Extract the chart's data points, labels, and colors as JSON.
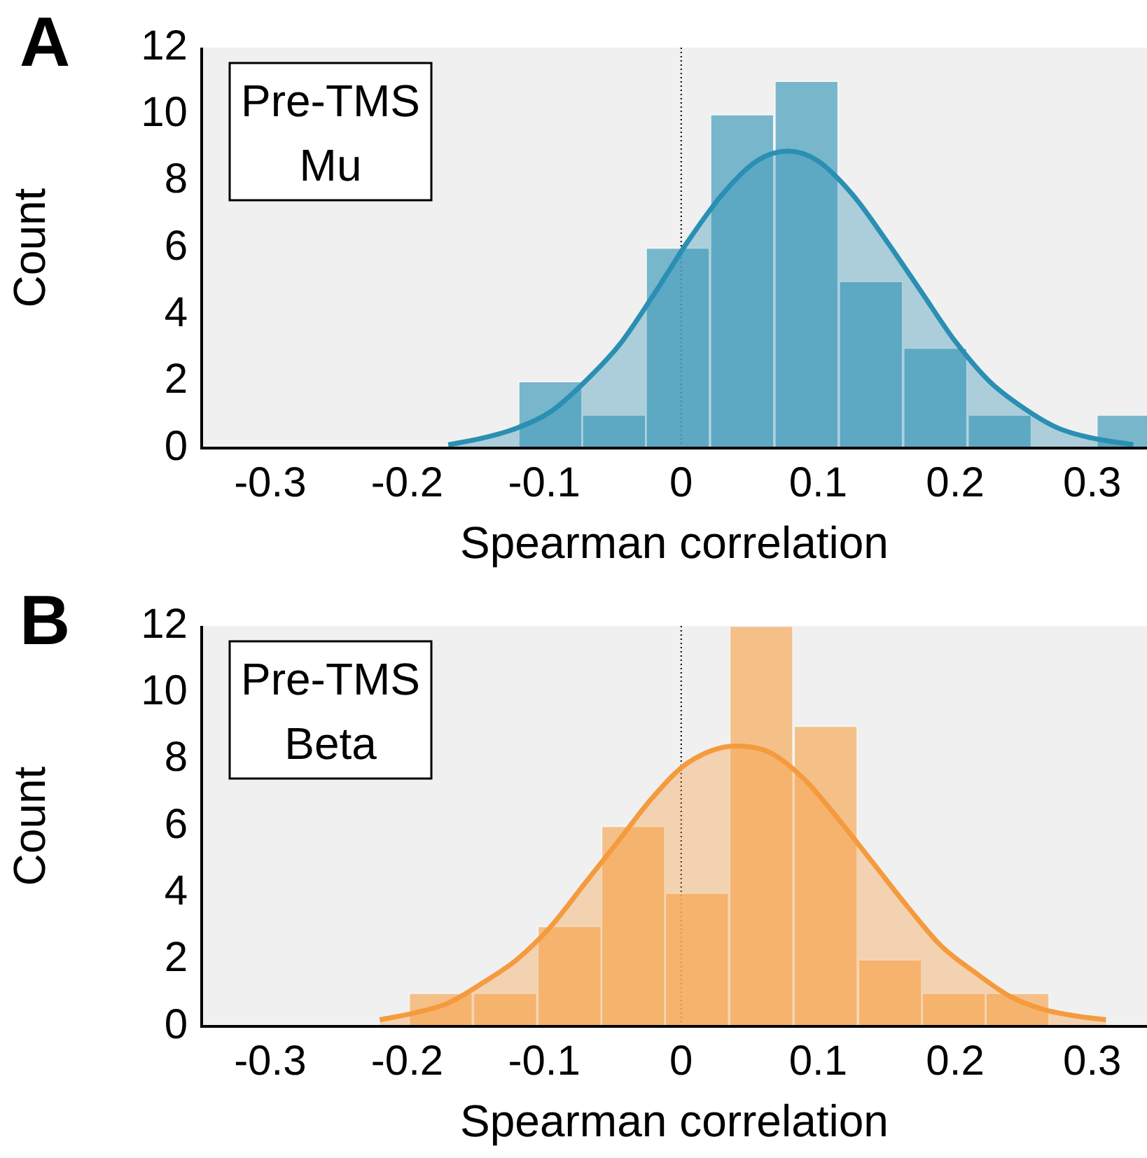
{
  "chart_data": [
    {
      "type": "histogram",
      "xlabel": "Spearman correlation",
      "ylabel": "Count",
      "annotations": [
        "A",
        "Pre-TMS\nMu"
      ],
      "xlim": [
        -0.35,
        0.34
      ],
      "xticks": [
        -0.3,
        -0.2,
        -0.1,
        0,
        0.1,
        0.2,
        0.3
      ],
      "ylim": [
        0,
        12
      ],
      "yticks": [
        0,
        2,
        4,
        6,
        8,
        10,
        12
      ],
      "grid": false,
      "legend": false,
      "ref_lines": [
        {
          "axis": "x",
          "value": 0,
          "color": "#000000",
          "line_style": "dotted"
        }
      ],
      "series": [
        {
          "type": "histogram",
          "color": "#5aa7c3",
          "bins": [
            -0.119,
            -0.072,
            -0.026,
            0.021,
            0.068,
            0.115,
            0.162,
            0.209,
            0.256,
            0.303,
            0.35
          ],
          "values": [
            2,
            1,
            6,
            10,
            11,
            5,
            3,
            1,
            0,
            1
          ]
        },
        {
          "type": "area",
          "color": "#2a8fb3",
          "x": [
            -0.17,
            -0.145,
            -0.12,
            -0.095,
            -0.07,
            -0.045,
            -0.02,
            0.005,
            0.03,
            0.055,
            0.078,
            0.1,
            0.125,
            0.15,
            0.175,
            0.2,
            0.225,
            0.25,
            0.275,
            0.3,
            0.33
          ],
          "values": [
            0.1,
            0.3,
            0.6,
            1.1,
            2.0,
            3.1,
            4.6,
            6.2,
            7.6,
            8.6,
            8.9,
            8.6,
            7.6,
            6.2,
            4.7,
            3.2,
            2.0,
            1.2,
            0.6,
            0.3,
            0.1
          ]
        }
      ]
    },
    {
      "type": "histogram",
      "xlabel": "Spearman correlation",
      "ylabel": "Count",
      "annotations": [
        "B",
        "Pre-TMS\nBeta"
      ],
      "xlim": [
        -0.35,
        0.34
      ],
      "xticks": [
        -0.3,
        -0.2,
        -0.1,
        0,
        0.1,
        0.2,
        0.3
      ],
      "ylim": [
        0,
        12
      ],
      "yticks": [
        0,
        2,
        4,
        6,
        8,
        10,
        12
      ],
      "grid": false,
      "legend": false,
      "ref_lines": [
        {
          "axis": "x",
          "value": 0,
          "color": "#000000",
          "line_style": "dotted"
        }
      ],
      "series": [
        {
          "type": "histogram",
          "color": "#f5b46e",
          "bins": [
            -0.199,
            -0.152,
            -0.105,
            -0.058,
            -0.012,
            0.035,
            0.082,
            0.129,
            0.176,
            0.222,
            0.269
          ],
          "values": [
            1,
            1,
            3,
            6,
            4,
            12,
            9,
            2,
            1,
            1
          ]
        },
        {
          "type": "area",
          "color": "#f59a3d",
          "x": [
            -0.22,
            -0.195,
            -0.17,
            -0.145,
            -0.12,
            -0.095,
            -0.07,
            -0.045,
            -0.02,
            0.005,
            0.0405,
            0.065,
            0.09,
            0.115,
            0.14,
            0.165,
            0.19,
            0.215,
            0.24,
            0.265,
            0.29,
            0.31
          ],
          "values": [
            0.2,
            0.4,
            0.7,
            1.3,
            2.0,
            3.0,
            4.3,
            5.6,
            6.9,
            7.9,
            8.4,
            8.2,
            7.4,
            6.2,
            4.9,
            3.6,
            2.4,
            1.6,
            0.9,
            0.5,
            0.3,
            0.2
          ]
        }
      ]
    }
  ]
}
